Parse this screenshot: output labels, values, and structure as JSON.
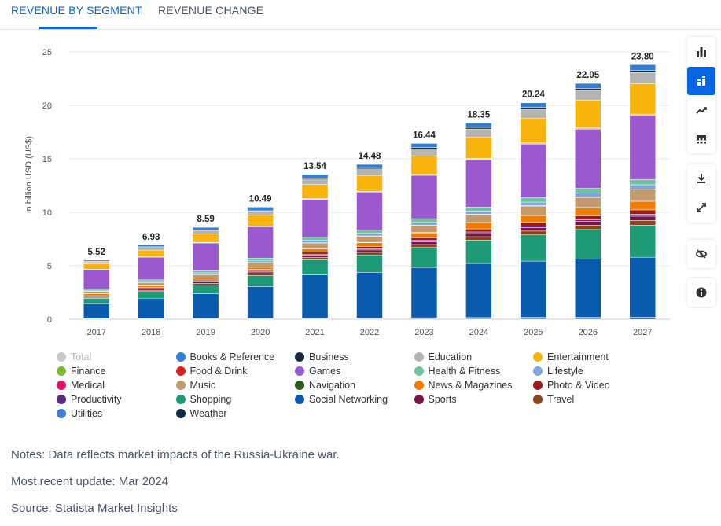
{
  "tabs": [
    {
      "label": "REVENUE BY SEGMENT",
      "active": true
    },
    {
      "label": "REVENUE CHANGE",
      "active": false
    }
  ],
  "toolbar": [
    {
      "name": "bar-chart-icon",
      "active": false
    },
    {
      "name": "stacked-bar-icon",
      "active": true
    },
    {
      "name": "trend-line-icon",
      "active": false
    },
    {
      "name": "table-icon",
      "active": false
    },
    {
      "name": "download-icon",
      "active": false
    },
    {
      "name": "fullscreen-icon",
      "active": false
    },
    {
      "name": "hide-icon",
      "active": false
    },
    {
      "name": "info-icon",
      "active": false
    }
  ],
  "chart_data": {
    "type": "bar",
    "stacked": true,
    "title": "",
    "xlabel": "",
    "ylabel": "in billion USD (US$)",
    "ylim": [
      0,
      25
    ],
    "yticks": [
      0,
      5,
      10,
      15,
      20,
      25
    ],
    "categories": [
      "2017",
      "2018",
      "2019",
      "2020",
      "2021",
      "2022",
      "2023",
      "2024",
      "2025",
      "2026",
      "2027"
    ],
    "totals": [
      5.52,
      6.93,
      8.59,
      10.49,
      13.54,
      14.48,
      16.44,
      18.35,
      20.24,
      22.05,
      23.8
    ],
    "total_labels": [
      "5.52",
      "6.93",
      "8.59",
      "10.49",
      "13.54",
      "14.48",
      "16.44",
      "18.35",
      "20.24",
      "22.05",
      "23.80"
    ],
    "series": [
      {
        "name": "Weather",
        "color": "#0f2a44",
        "values": [
          0.02,
          0.02,
          0.03,
          0.03,
          0.04,
          0.05,
          0.06,
          0.07,
          0.08,
          0.08,
          0.09
        ]
      },
      {
        "name": "Utilities",
        "color": "#3b7dd8",
        "values": [
          0.03,
          0.04,
          0.05,
          0.05,
          0.06,
          0.07,
          0.08,
          0.09,
          0.1,
          0.1,
          0.11
        ]
      },
      {
        "name": "Social Networking",
        "color": "#0a5aad",
        "values": [
          1.4,
          1.85,
          2.3,
          2.95,
          4.0,
          4.2,
          4.75,
          5.1,
          5.35,
          5.5,
          5.6
        ]
      },
      {
        "name": "Shopping",
        "color": "#1f9a77",
        "values": [
          0.5,
          0.6,
          0.8,
          1.0,
          1.4,
          1.6,
          1.9,
          2.2,
          2.5,
          2.8,
          3.0
        ]
      },
      {
        "name": "Travel",
        "color": "#8b4513",
        "values": [
          0.1,
          0.12,
          0.15,
          0.18,
          0.22,
          0.24,
          0.28,
          0.32,
          0.36,
          0.4,
          0.45
        ]
      },
      {
        "name": "Sports",
        "color": "#7a1446",
        "values": [
          0.08,
          0.1,
          0.13,
          0.16,
          0.2,
          0.22,
          0.26,
          0.3,
          0.33,
          0.36,
          0.4
        ]
      },
      {
        "name": "Productivity",
        "color": "#5a2d82",
        "values": [
          0.05,
          0.06,
          0.07,
          0.08,
          0.1,
          0.11,
          0.13,
          0.15,
          0.16,
          0.17,
          0.18
        ]
      },
      {
        "name": "Photo & Video",
        "color": "#9e1a1a",
        "values": [
          0.08,
          0.1,
          0.12,
          0.15,
          0.19,
          0.21,
          0.25,
          0.29,
          0.33,
          0.37,
          0.41
        ]
      },
      {
        "name": "News & Magazines",
        "color": "#f07c00",
        "values": [
          0.12,
          0.14,
          0.17,
          0.21,
          0.3,
          0.35,
          0.45,
          0.55,
          0.65,
          0.72,
          0.8
        ]
      },
      {
        "name": "Navigation",
        "color": "#2e5a1c",
        "values": [
          0.02,
          0.02,
          0.03,
          0.03,
          0.04,
          0.04,
          0.05,
          0.05,
          0.06,
          0.06,
          0.07
        ]
      },
      {
        "name": "Music",
        "color": "#c49a6c",
        "values": [
          0.2,
          0.25,
          0.3,
          0.4,
          0.5,
          0.55,
          0.65,
          0.75,
          0.85,
          0.95,
          1.05
        ]
      },
      {
        "name": "Medical",
        "color": "#e0116a",
        "values": [
          0.01,
          0.01,
          0.02,
          0.02,
          0.02,
          0.03,
          0.03,
          0.03,
          0.04,
          0.04,
          0.04
        ]
      },
      {
        "name": "Lifestyle",
        "color": "#7ba7dd",
        "values": [
          0.1,
          0.12,
          0.15,
          0.18,
          0.22,
          0.24,
          0.27,
          0.3,
          0.33,
          0.36,
          0.39
        ]
      },
      {
        "name": "Health & Fitness",
        "color": "#6dc49c",
        "values": [
          0.12,
          0.15,
          0.18,
          0.22,
          0.28,
          0.3,
          0.35,
          0.38,
          0.42,
          0.45,
          0.48
        ]
      },
      {
        "name": "Games",
        "color": "#9b59d0",
        "values": [
          1.8,
          2.05,
          2.6,
          2.9,
          3.5,
          3.5,
          4.1,
          4.5,
          5.1,
          5.6,
          6.0
        ]
      },
      {
        "name": "Food & Drink",
        "color": "#d6201e",
        "values": [
          0.02,
          0.02,
          0.03,
          0.03,
          0.04,
          0.04,
          0.05,
          0.05,
          0.06,
          0.06,
          0.07
        ]
      },
      {
        "name": "Finance",
        "color": "#7cb82f",
        "values": [
          0.02,
          0.02,
          0.03,
          0.03,
          0.04,
          0.04,
          0.05,
          0.05,
          0.06,
          0.06,
          0.07
        ]
      },
      {
        "name": "Entertainment",
        "color": "#f8b30c",
        "values": [
          0.5,
          0.6,
          0.8,
          1.0,
          1.3,
          1.45,
          1.75,
          2.0,
          2.35,
          2.6,
          2.85
        ]
      },
      {
        "name": "Education",
        "color": "#b4b4b4",
        "values": [
          0.2,
          0.25,
          0.3,
          0.4,
          0.5,
          0.55,
          0.65,
          0.75,
          0.85,
          0.95,
          1.05
        ]
      },
      {
        "name": "Business",
        "color": "#1a2b3c",
        "values": [
          0.05,
          0.06,
          0.07,
          0.08,
          0.1,
          0.11,
          0.13,
          0.15,
          0.16,
          0.18,
          0.2
        ]
      },
      {
        "name": "Books & Reference",
        "color": "#2f7fd6",
        "values": [
          0.1,
          0.15,
          0.22,
          0.28,
          0.33,
          0.36,
          0.39,
          0.42,
          0.45,
          0.47,
          0.52
        ]
      }
    ]
  },
  "legend": {
    "items": [
      {
        "label": "Total",
        "color": "#c8c8c8",
        "muted": true
      },
      {
        "label": "Books & Reference",
        "color": "#2f7fd6"
      },
      {
        "label": "Business",
        "color": "#1a2b3c"
      },
      {
        "label": "Education",
        "color": "#b4b4b4"
      },
      {
        "label": "Entertainment",
        "color": "#f8b30c"
      },
      {
        "label": "Finance",
        "color": "#7cb82f"
      },
      {
        "label": "Food & Drink",
        "color": "#d6201e"
      },
      {
        "label": "Games",
        "color": "#9b59d0"
      },
      {
        "label": "Health & Fitness",
        "color": "#6dc49c"
      },
      {
        "label": "Lifestyle",
        "color": "#7ba7dd"
      },
      {
        "label": "Medical",
        "color": "#e0116a"
      },
      {
        "label": "Music",
        "color": "#c49a6c"
      },
      {
        "label": "Navigation",
        "color": "#2e5a1c"
      },
      {
        "label": "News & Magazines",
        "color": "#f07c00"
      },
      {
        "label": "Photo & Video",
        "color": "#9e1a1a"
      },
      {
        "label": "Productivity",
        "color": "#5a2d82"
      },
      {
        "label": "Shopping",
        "color": "#1f9a77"
      },
      {
        "label": "Social Networking",
        "color": "#0a5aad"
      },
      {
        "label": "Sports",
        "color": "#7a1446"
      },
      {
        "label": "Travel",
        "color": "#8b4513"
      },
      {
        "label": "Utilities",
        "color": "#3b7dd8"
      },
      {
        "label": "Weather",
        "color": "#0f2a44"
      }
    ]
  },
  "notes": {
    "note": "Notes: Data reflects market impacts of the Russia-Ukraine war.",
    "update": "Most recent update: Mar 2024",
    "source": "Source: Statista Market Insights"
  }
}
